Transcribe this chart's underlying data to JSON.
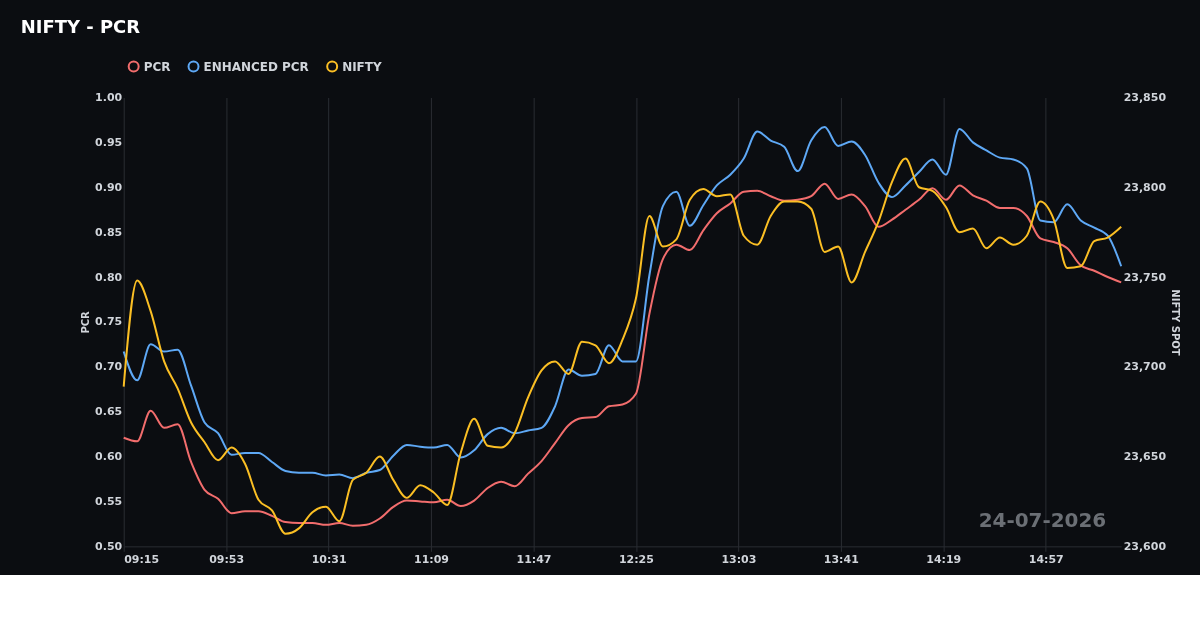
{
  "chart_data": {
    "type": "line",
    "title": "NIFTY - PCR",
    "ylabel": "PCR",
    "y2label": "NIFTY SPOT",
    "legend": "top",
    "grid": "x",
    "annotations": [
      "24-07-2026"
    ],
    "x": [
      9.25,
      9.3333,
      9.4167,
      9.5,
      9.5833,
      9.6667,
      9.75,
      9.8333,
      9.9167,
      10,
      10.0833,
      10.1667,
      10.25,
      10.3333,
      10.4167,
      10.5,
      10.5833,
      10.6667,
      10.75,
      10.8333,
      10.9167,
      11,
      11.0833,
      11.1667,
      11.25,
      11.3333,
      11.4167,
      11.5,
      11.5833,
      11.6667,
      11.75,
      11.8333,
      11.9167,
      12,
      12.0833,
      12.1667,
      12.25,
      12.3333,
      12.4167,
      12.5,
      12.5833,
      12.6667,
      12.75,
      12.8333,
      12.9167,
      13,
      13.0833,
      13.1667,
      13.25,
      13.3333,
      13.4167,
      13.5,
      13.5833,
      13.6667,
      13.75,
      13.8333,
      13.9167,
      14,
      14.0833,
      14.1667,
      14.25,
      14.3333,
      14.4167,
      14.5,
      14.5833,
      14.6667,
      14.75,
      14.8333,
      14.9167,
      15,
      15.0833,
      15.1667,
      15.25,
      15.3333,
      15.4167
    ],
    "xlim": [
      9.25,
      15.4167
    ],
    "xticks": [
      {
        "value": 9.25,
        "label": "09:15"
      },
      {
        "value": 9.8833,
        "label": "09:53"
      },
      {
        "value": 10.5167,
        "label": "10:31"
      },
      {
        "value": 11.15,
        "label": "11:09"
      },
      {
        "value": 11.7833,
        "label": "11:47"
      },
      {
        "value": 12.4167,
        "label": "12:25"
      },
      {
        "value": 13.05,
        "label": "13:03"
      },
      {
        "value": 13.6833,
        "label": "13:41"
      },
      {
        "value": 14.3167,
        "label": "14:19"
      },
      {
        "value": 14.95,
        "label": "14:57"
      }
    ],
    "ylim": [
      0.5,
      1.0
    ],
    "yticks": [
      {
        "value": 0.5,
        "label": "0.50"
      },
      {
        "value": 0.55,
        "label": "0.55"
      },
      {
        "value": 0.6,
        "label": "0.60"
      },
      {
        "value": 0.65,
        "label": "0.65"
      },
      {
        "value": 0.7,
        "label": "0.70"
      },
      {
        "value": 0.75,
        "label": "0.75"
      },
      {
        "value": 0.8,
        "label": "0.80"
      },
      {
        "value": 0.85,
        "label": "0.85"
      },
      {
        "value": 0.9,
        "label": "0.90"
      },
      {
        "value": 0.95,
        "label": "0.95"
      },
      {
        "value": 1.0,
        "label": "1.00"
      }
    ],
    "y2lim": [
      23600,
      23850
    ],
    "y2ticks": [
      {
        "value": 23600,
        "label": "23,600"
      },
      {
        "value": 23650,
        "label": "23,650"
      },
      {
        "value": 23700,
        "label": "23,700"
      },
      {
        "value": 23750,
        "label": "23,750"
      },
      {
        "value": 23800,
        "label": "23,800"
      },
      {
        "value": 23850,
        "label": "23,850"
      }
    ],
    "series": [
      {
        "name": "PCR",
        "color": "#f26d6d",
        "values": [
          0.621,
          0.617,
          0.651,
          0.632,
          0.636,
          0.594,
          0.563,
          0.553,
          0.537,
          0.539,
          0.539,
          0.534,
          0.527,
          0.526,
          0.526,
          0.524,
          0.526,
          0.523,
          0.524,
          0.531,
          0.544,
          0.551,
          0.55,
          0.549,
          0.552,
          0.545,
          0.551,
          0.565,
          0.572,
          0.567,
          0.581,
          0.595,
          0.615,
          0.635,
          0.643,
          0.644,
          0.656,
          0.658,
          0.67,
          0.759,
          0.82,
          0.836,
          0.83,
          0.852,
          0.871,
          0.882,
          0.895,
          0.896,
          0.89,
          0.885,
          0.886,
          0.89,
          0.904,
          0.887,
          0.892,
          0.879,
          0.856,
          0.864,
          0.875,
          0.886,
          0.899,
          0.886,
          0.902,
          0.891,
          0.885,
          0.877,
          0.877,
          0.868,
          0.843,
          0.839,
          0.832,
          0.813,
          0.807,
          0.8,
          0.794
        ]
      },
      {
        "name": "ENHANCED PCR",
        "color": "#5ea8f5",
        "values": [
          0.717,
          0.685,
          0.725,
          0.717,
          0.719,
          0.679,
          0.638,
          0.626,
          0.602,
          0.604,
          0.604,
          0.594,
          0.584,
          0.582,
          0.582,
          0.579,
          0.58,
          0.576,
          0.582,
          0.585,
          0.601,
          0.613,
          0.611,
          0.61,
          0.613,
          0.599,
          0.607,
          0.625,
          0.632,
          0.626,
          0.629,
          0.632,
          0.656,
          0.697,
          0.69,
          0.692,
          0.724,
          0.706,
          0.706,
          0.802,
          0.879,
          0.895,
          0.857,
          0.88,
          0.902,
          0.914,
          0.932,
          0.962,
          0.952,
          0.945,
          0.918,
          0.952,
          0.967,
          0.946,
          0.951,
          0.936,
          0.905,
          0.889,
          0.902,
          0.917,
          0.931,
          0.914,
          0.965,
          0.95,
          0.941,
          0.933,
          0.931,
          0.921,
          0.863,
          0.861,
          0.881,
          0.863,
          0.855,
          0.846,
          0.812
        ]
      },
      {
        "name": "NIFTY",
        "color": "#fbbf24",
        "axis": "y2",
        "values": [
          23689,
          23748,
          23731,
          23703,
          23688,
          23669,
          23658,
          23648,
          23655,
          23646,
          23626,
          23620,
          23607,
          23610,
          23619,
          23622,
          23614,
          23637,
          23641,
          23650,
          23637,
          23627,
          23634,
          23630,
          23623,
          23652,
          23671,
          23656,
          23655,
          23663,
          23683,
          23698,
          23703,
          23696,
          23714,
          23712,
          23702,
          23715,
          23738,
          23784,
          23767,
          23771,
          23793,
          23799,
          23795,
          23796,
          23773,
          23768,
          23784,
          23792,
          23792,
          23788,
          23764,
          23767,
          23747,
          23764,
          23781,
          23803,
          23816,
          23800,
          23798,
          23789,
          23775,
          23777,
          23766,
          23772,
          23768,
          23773,
          23792,
          23782,
          23755,
          23756,
          23770,
          23772,
          23778
        ]
      }
    ]
  }
}
